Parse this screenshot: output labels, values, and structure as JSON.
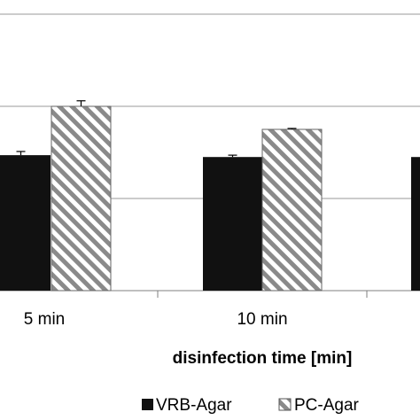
{
  "chart_data": {
    "type": "bar",
    "title": "",
    "xlabel": "disinfection time [min]",
    "ylabel": "",
    "categories": [
      "5 min",
      "10 min",
      ""
    ],
    "series": [
      {
        "name": "VRB-Agar",
        "values": [
          1.47,
          1.45,
          1.45
        ],
        "errors": [
          0.04,
          0.02,
          null
        ],
        "fill": "solid"
      },
      {
        "name": "PC-Agar",
        "values": [
          2.0,
          1.75,
          null
        ],
        "errors": [
          0.06,
          0.01,
          null
        ],
        "fill": "hatched"
      }
    ],
    "ylim": [
      0,
      3.0
    ],
    "gridlines": [
      1.0,
      2.0,
      3.0
    ],
    "grid": true,
    "legend_position": "bottom",
    "colors": {
      "vrb": "#111111",
      "pc_hatch": "#8a8a8a",
      "grid": "#9a9a9a",
      "axis": "#7f7f7f"
    }
  }
}
